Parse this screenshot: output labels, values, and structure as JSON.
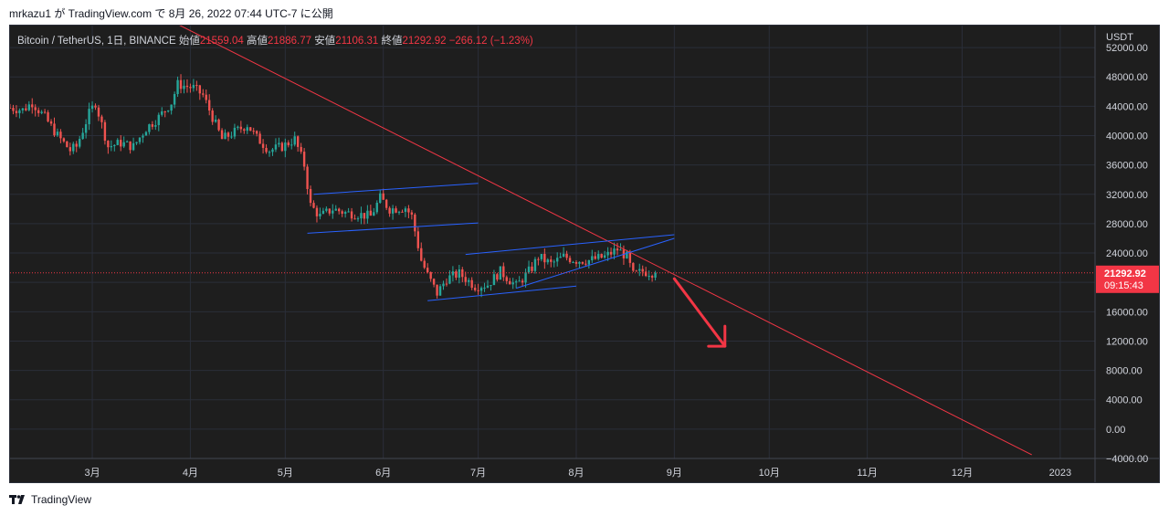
{
  "caption": "mrkazu1 が TradingView.com で 8月 26, 2022 07:44 UTC-7 に公開",
  "legend": {
    "symbol": "Bitcoin / TetherUS, 1日, BINANCE",
    "open_label": "始値",
    "open": "21559.04",
    "high_label": "高値",
    "high": "21886.77",
    "low_label": "安値",
    "low": "21106.31",
    "close_label": "終値",
    "close": "21292.92",
    "change": "−266.12 (−1.23%)"
  },
  "footer": {
    "brand": "TradingView"
  },
  "colors": {
    "background": "#1e1e1e",
    "grid": "#2a2e39",
    "up": "#26a69a",
    "down": "#ef5350",
    "trendline": "#f23645",
    "channel": "#2962ff",
    "price_tag": "#f23645",
    "axis_text": "#d1d4dc"
  },
  "chart_data": {
    "type": "candlestick",
    "currency_label": "USDT",
    "y_ticks": [
      "52000.00",
      "48000.00",
      "44000.00",
      "40000.00",
      "36000.00",
      "32000.00",
      "28000.00",
      "24000.00",
      "20000.00",
      "16000.00",
      "12000.00",
      "8000.00",
      "4000.00",
      "0.00",
      "−4000.00"
    ],
    "y_tick_values": [
      52000,
      48000,
      44000,
      40000,
      36000,
      32000,
      28000,
      24000,
      20000,
      16000,
      12000,
      8000,
      4000,
      0,
      -4000
    ],
    "ylim": [
      -4000,
      55000
    ],
    "x_ticks": [
      {
        "label": "3月",
        "date": "2022-03-01"
      },
      {
        "label": "4月",
        "date": "2022-04-01"
      },
      {
        "label": "5月",
        "date": "2022-05-01"
      },
      {
        "label": "6月",
        "date": "2022-06-01"
      },
      {
        "label": "7月",
        "date": "2022-07-01"
      },
      {
        "label": "8月",
        "date": "2022-08-01"
      },
      {
        "label": "9月",
        "date": "2022-09-01"
      },
      {
        "label": "10月",
        "date": "2022-10-01"
      },
      {
        "label": "11月",
        "date": "2022-11-01"
      },
      {
        "label": "12月",
        "date": "2022-12-01"
      },
      {
        "label": "2023",
        "date": "2023-01-01"
      }
    ],
    "xlim": [
      "2022-02-03",
      "2023-01-12"
    ],
    "current_price": "21292.92",
    "countdown": "09:15:43",
    "closes": [
      {
        "date": "2022-02-03",
        "close": 43800
      },
      {
        "date": "2022-02-07",
        "close": 43500
      },
      {
        "date": "2022-02-10",
        "close": 44500
      },
      {
        "date": "2022-02-14",
        "close": 42500
      },
      {
        "date": "2022-02-18",
        "close": 40000
      },
      {
        "date": "2022-02-22",
        "close": 38000
      },
      {
        "date": "2022-02-24",
        "close": 38500
      },
      {
        "date": "2022-02-28",
        "close": 43000
      },
      {
        "date": "2022-03-02",
        "close": 44500
      },
      {
        "date": "2022-03-06",
        "close": 38500
      },
      {
        "date": "2022-03-10",
        "close": 39000
      },
      {
        "date": "2022-03-14",
        "close": 38500
      },
      {
        "date": "2022-03-18",
        "close": 41000
      },
      {
        "date": "2022-03-22",
        "close": 42500
      },
      {
        "date": "2022-03-26",
        "close": 44500
      },
      {
        "date": "2022-03-28",
        "close": 47000
      },
      {
        "date": "2022-04-02",
        "close": 46500
      },
      {
        "date": "2022-04-05",
        "close": 45500
      },
      {
        "date": "2022-04-07",
        "close": 43500
      },
      {
        "date": "2022-04-11",
        "close": 39500
      },
      {
        "date": "2022-04-15",
        "close": 40500
      },
      {
        "date": "2022-04-19",
        "close": 41500
      },
      {
        "date": "2022-04-22",
        "close": 39700
      },
      {
        "date": "2022-04-26",
        "close": 38000
      },
      {
        "date": "2022-04-30",
        "close": 38500
      },
      {
        "date": "2022-05-04",
        "close": 39500
      },
      {
        "date": "2022-05-07",
        "close": 36000
      },
      {
        "date": "2022-05-09",
        "close": 30500
      },
      {
        "date": "2022-05-12",
        "close": 29000
      },
      {
        "date": "2022-05-16",
        "close": 30000
      },
      {
        "date": "2022-05-20",
        "close": 29500
      },
      {
        "date": "2022-05-24",
        "close": 29300
      },
      {
        "date": "2022-05-28",
        "close": 29000
      },
      {
        "date": "2022-05-31",
        "close": 31500
      },
      {
        "date": "2022-06-03",
        "close": 30000
      },
      {
        "date": "2022-06-08",
        "close": 30200
      },
      {
        "date": "2022-06-10",
        "close": 29000
      },
      {
        "date": "2022-06-13",
        "close": 23000
      },
      {
        "date": "2022-06-15",
        "close": 21000
      },
      {
        "date": "2022-06-18",
        "close": 18500
      },
      {
        "date": "2022-06-21",
        "close": 20500
      },
      {
        "date": "2022-06-25",
        "close": 21200
      },
      {
        "date": "2022-06-30",
        "close": 19500
      },
      {
        "date": "2022-07-04",
        "close": 19700
      },
      {
        "date": "2022-07-08",
        "close": 21500
      },
      {
        "date": "2022-07-13",
        "close": 19500
      },
      {
        "date": "2022-07-18",
        "close": 22000
      },
      {
        "date": "2022-07-20",
        "close": 23500
      },
      {
        "date": "2022-07-24",
        "close": 22500
      },
      {
        "date": "2022-07-28",
        "close": 23500
      },
      {
        "date": "2022-08-01",
        "close": 23000
      },
      {
        "date": "2022-08-05",
        "close": 23000
      },
      {
        "date": "2022-08-10",
        "close": 23500
      },
      {
        "date": "2022-08-14",
        "close": 24500
      },
      {
        "date": "2022-08-17",
        "close": 23500
      },
      {
        "date": "2022-08-19",
        "close": 21000
      },
      {
        "date": "2022-08-22",
        "close": 21500
      },
      {
        "date": "2022-08-26",
        "close": 21292.92
      }
    ],
    "drawings": {
      "downtrend_line": [
        {
          "date": "2022-03-15",
          "price": 58000
        },
        {
          "date": "2022-12-23",
          "price": -3500
        }
      ],
      "channel_may_june": [
        [
          {
            "date": "2022-05-10",
            "price": 32000
          },
          {
            "date": "2022-07-01",
            "price": 33500
          }
        ],
        [
          {
            "date": "2022-05-08",
            "price": 26700
          },
          {
            "date": "2022-07-01",
            "price": 28100
          }
        ]
      ],
      "wedge_july_aug": [
        [
          {
            "date": "2022-06-27",
            "price": 23800
          },
          {
            "date": "2022-09-01",
            "price": 26500
          }
        ],
        [
          {
            "date": "2022-06-15",
            "price": 17500
          },
          {
            "date": "2022-08-01",
            "price": 19500
          }
        ],
        [
          {
            "date": "2022-07-13",
            "price": 19200
          },
          {
            "date": "2022-09-01",
            "price": 26000
          }
        ]
      ],
      "down_arrow": [
        {
          "date": "2022-09-01",
          "price": 20500
        },
        {
          "date": "2022-09-17",
          "price": 11300
        }
      ]
    }
  }
}
